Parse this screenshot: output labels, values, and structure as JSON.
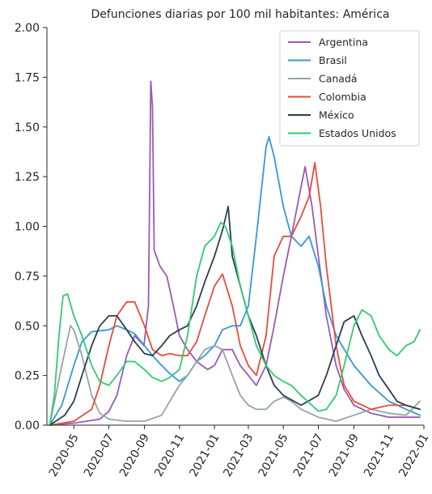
{
  "chart_data": {
    "type": "line",
    "title": "Defunciones diarias por 100 mil habitantes: América",
    "xlabel": "",
    "ylabel": "",
    "grid": false,
    "legend_position": "top-right",
    "x_domain": [
      "2020-03-15",
      "2022-01-01"
    ],
    "ylim": [
      0,
      2.0
    ],
    "y_ticks": [
      "0.00",
      "0.25",
      "0.50",
      "0.75",
      "1.00",
      "1.25",
      "1.50",
      "1.75",
      "2.00"
    ],
    "x_ticks": [
      {
        "date": "2020-05-01",
        "label": "2020-05"
      },
      {
        "date": "2020-07-01",
        "label": "2020-07"
      },
      {
        "date": "2020-09-01",
        "label": "2020-09"
      },
      {
        "date": "2020-11-01",
        "label": "2020-11"
      },
      {
        "date": "2021-01-01",
        "label": "2021-01"
      },
      {
        "date": "2021-03-01",
        "label": "2021-03"
      },
      {
        "date": "2021-05-01",
        "label": "2021-05"
      },
      {
        "date": "2021-07-01",
        "label": "2021-07"
      },
      {
        "date": "2021-09-01",
        "label": "2021-09"
      },
      {
        "date": "2021-11-01",
        "label": "2021-11"
      },
      {
        "date": "2022-01-01",
        "label": "2022-01"
      }
    ],
    "series": [
      {
        "name": "Argentina",
        "color": "#9b59b6",
        "points": [
          [
            "2020-03-20",
            0.0
          ],
          [
            "2020-05-01",
            0.01
          ],
          [
            "2020-06-15",
            0.03
          ],
          [
            "2020-07-01",
            0.07
          ],
          [
            "2020-07-15",
            0.15
          ],
          [
            "2020-08-01",
            0.35
          ],
          [
            "2020-08-15",
            0.45
          ],
          [
            "2020-08-31",
            0.4
          ],
          [
            "2020-09-08",
            0.6
          ],
          [
            "2020-09-12",
            1.73
          ],
          [
            "2020-09-15",
            1.6
          ],
          [
            "2020-09-18",
            0.88
          ],
          [
            "2020-09-28",
            0.8
          ],
          [
            "2020-10-10",
            0.75
          ],
          [
            "2020-10-20",
            0.62
          ],
          [
            "2020-11-01",
            0.45
          ],
          [
            "2020-11-15",
            0.38
          ],
          [
            "2020-12-01",
            0.32
          ],
          [
            "2020-12-20",
            0.28
          ],
          [
            "2021-01-01",
            0.3
          ],
          [
            "2021-01-15",
            0.38
          ],
          [
            "2021-02-01",
            0.38
          ],
          [
            "2021-02-15",
            0.3
          ],
          [
            "2021-03-01",
            0.25
          ],
          [
            "2021-03-15",
            0.2
          ],
          [
            "2021-04-01",
            0.3
          ],
          [
            "2021-04-15",
            0.5
          ],
          [
            "2021-05-01",
            0.75
          ],
          [
            "2021-05-15",
            0.95
          ],
          [
            "2021-06-01",
            1.2
          ],
          [
            "2021-06-08",
            1.3
          ],
          [
            "2021-06-20",
            1.1
          ],
          [
            "2021-07-01",
            0.85
          ],
          [
            "2021-07-15",
            0.55
          ],
          [
            "2021-08-01",
            0.3
          ],
          [
            "2021-08-15",
            0.18
          ],
          [
            "2021-09-01",
            0.1
          ],
          [
            "2021-10-01",
            0.06
          ],
          [
            "2021-11-01",
            0.04
          ],
          [
            "2021-12-01",
            0.04
          ],
          [
            "2021-12-25",
            0.04
          ]
        ]
      },
      {
        "name": "Brasil",
        "color": "#3498db",
        "points": [
          [
            "2020-03-20",
            0.0
          ],
          [
            "2020-04-10",
            0.1
          ],
          [
            "2020-05-01",
            0.3
          ],
          [
            "2020-05-15",
            0.42
          ],
          [
            "2020-06-01",
            0.47
          ],
          [
            "2020-07-01",
            0.48
          ],
          [
            "2020-07-15",
            0.5
          ],
          [
            "2020-08-01",
            0.48
          ],
          [
            "2020-08-15",
            0.46
          ],
          [
            "2020-09-01",
            0.4
          ],
          [
            "2020-09-15",
            0.35
          ],
          [
            "2020-10-01",
            0.3
          ],
          [
            "2020-10-15",
            0.26
          ],
          [
            "2020-11-01",
            0.22
          ],
          [
            "2020-11-15",
            0.25
          ],
          [
            "2020-12-01",
            0.32
          ],
          [
            "2020-12-15",
            0.35
          ],
          [
            "2021-01-01",
            0.4
          ],
          [
            "2021-01-15",
            0.48
          ],
          [
            "2021-02-01",
            0.5
          ],
          [
            "2021-02-15",
            0.5
          ],
          [
            "2021-03-01",
            0.6
          ],
          [
            "2021-03-15",
            0.95
          ],
          [
            "2021-04-01",
            1.4
          ],
          [
            "2021-04-06",
            1.45
          ],
          [
            "2021-04-15",
            1.35
          ],
          [
            "2021-05-01",
            1.1
          ],
          [
            "2021-05-15",
            0.95
          ],
          [
            "2021-06-01",
            0.9
          ],
          [
            "2021-06-15",
            0.95
          ],
          [
            "2021-07-01",
            0.8
          ],
          [
            "2021-07-15",
            0.6
          ],
          [
            "2021-08-01",
            0.45
          ],
          [
            "2021-09-01",
            0.3
          ],
          [
            "2021-10-01",
            0.2
          ],
          [
            "2021-11-01",
            0.12
          ],
          [
            "2021-12-01",
            0.08
          ],
          [
            "2021-12-25",
            0.05
          ]
        ]
      },
      {
        "name": "Canadá",
        "color": "#95a5a6",
        "points": [
          [
            "2020-03-20",
            0.0
          ],
          [
            "2020-04-10",
            0.3
          ],
          [
            "2020-04-25",
            0.5
          ],
          [
            "2020-05-01",
            0.48
          ],
          [
            "2020-05-15",
            0.35
          ],
          [
            "2020-06-01",
            0.15
          ],
          [
            "2020-06-15",
            0.06
          ],
          [
            "2020-07-01",
            0.03
          ],
          [
            "2020-08-01",
            0.02
          ],
          [
            "2020-09-01",
            0.02
          ],
          [
            "2020-10-01",
            0.05
          ],
          [
            "2020-10-15",
            0.12
          ],
          [
            "2020-11-01",
            0.2
          ],
          [
            "2020-11-15",
            0.25
          ],
          [
            "2020-12-01",
            0.32
          ],
          [
            "2020-12-15",
            0.38
          ],
          [
            "2021-01-01",
            0.4
          ],
          [
            "2021-01-15",
            0.38
          ],
          [
            "2021-02-01",
            0.25
          ],
          [
            "2021-02-15",
            0.15
          ],
          [
            "2021-03-01",
            0.1
          ],
          [
            "2021-03-15",
            0.08
          ],
          [
            "2021-04-01",
            0.08
          ],
          [
            "2021-04-15",
            0.12
          ],
          [
            "2021-05-01",
            0.14
          ],
          [
            "2021-05-15",
            0.12
          ],
          [
            "2021-06-01",
            0.08
          ],
          [
            "2021-07-01",
            0.04
          ],
          [
            "2021-08-01",
            0.02
          ],
          [
            "2021-09-01",
            0.05
          ],
          [
            "2021-10-01",
            0.08
          ],
          [
            "2021-11-01",
            0.06
          ],
          [
            "2021-12-01",
            0.05
          ],
          [
            "2021-12-25",
            0.12
          ]
        ]
      },
      {
        "name": "Colombia",
        "color": "#e74c3c",
        "points": [
          [
            "2020-03-20",
            0.0
          ],
          [
            "2020-05-01",
            0.02
          ],
          [
            "2020-06-01",
            0.08
          ],
          [
            "2020-06-15",
            0.2
          ],
          [
            "2020-07-01",
            0.4
          ],
          [
            "2020-07-15",
            0.55
          ],
          [
            "2020-08-01",
            0.62
          ],
          [
            "2020-08-15",
            0.62
          ],
          [
            "2020-09-01",
            0.5
          ],
          [
            "2020-09-15",
            0.38
          ],
          [
            "2020-10-01",
            0.35
          ],
          [
            "2020-10-15",
            0.36
          ],
          [
            "2020-11-01",
            0.35
          ],
          [
            "2020-11-15",
            0.35
          ],
          [
            "2020-12-01",
            0.42
          ],
          [
            "2020-12-15",
            0.55
          ],
          [
            "2021-01-01",
            0.7
          ],
          [
            "2021-01-15",
            0.76
          ],
          [
            "2021-02-01",
            0.6
          ],
          [
            "2021-02-15",
            0.4
          ],
          [
            "2021-03-01",
            0.3
          ],
          [
            "2021-03-15",
            0.25
          ],
          [
            "2021-04-01",
            0.45
          ],
          [
            "2021-04-15",
            0.85
          ],
          [
            "2021-05-01",
            0.95
          ],
          [
            "2021-05-15",
            0.95
          ],
          [
            "2021-06-01",
            1.05
          ],
          [
            "2021-06-15",
            1.15
          ],
          [
            "2021-06-25",
            1.32
          ],
          [
            "2021-07-05",
            1.1
          ],
          [
            "2021-07-15",
            0.8
          ],
          [
            "2021-08-01",
            0.4
          ],
          [
            "2021-08-15",
            0.2
          ],
          [
            "2021-09-01",
            0.12
          ],
          [
            "2021-10-01",
            0.08
          ],
          [
            "2021-11-01",
            0.1
          ],
          [
            "2021-12-01",
            0.1
          ],
          [
            "2021-12-25",
            0.08
          ]
        ]
      },
      {
        "name": "México",
        "color": "#2c3e50",
        "points": [
          [
            "2020-03-20",
            0.0
          ],
          [
            "2020-04-15",
            0.05
          ],
          [
            "2020-05-01",
            0.12
          ],
          [
            "2020-05-15",
            0.25
          ],
          [
            "2020-06-01",
            0.4
          ],
          [
            "2020-06-15",
            0.5
          ],
          [
            "2020-07-01",
            0.55
          ],
          [
            "2020-07-15",
            0.55
          ],
          [
            "2020-08-01",
            0.48
          ],
          [
            "2020-08-15",
            0.42
          ],
          [
            "2020-09-01",
            0.36
          ],
          [
            "2020-09-15",
            0.35
          ],
          [
            "2020-10-01",
            0.4
          ],
          [
            "2020-10-15",
            0.45
          ],
          [
            "2020-11-01",
            0.48
          ],
          [
            "2020-11-15",
            0.5
          ],
          [
            "2020-12-01",
            0.6
          ],
          [
            "2020-12-15",
            0.72
          ],
          [
            "2021-01-01",
            0.85
          ],
          [
            "2021-01-15",
            0.98
          ],
          [
            "2021-01-25",
            1.1
          ],
          [
            "2021-02-01",
            0.85
          ],
          [
            "2021-02-15",
            0.7
          ],
          [
            "2021-03-01",
            0.55
          ],
          [
            "2021-03-15",
            0.45
          ],
          [
            "2021-04-01",
            0.3
          ],
          [
            "2021-04-15",
            0.2
          ],
          [
            "2021-05-01",
            0.15
          ],
          [
            "2021-06-01",
            0.1
          ],
          [
            "2021-07-01",
            0.15
          ],
          [
            "2021-07-15",
            0.25
          ],
          [
            "2021-08-01",
            0.4
          ],
          [
            "2021-08-15",
            0.52
          ],
          [
            "2021-09-01",
            0.55
          ],
          [
            "2021-09-15",
            0.45
          ],
          [
            "2021-10-01",
            0.35
          ],
          [
            "2021-10-15",
            0.25
          ],
          [
            "2021-11-01",
            0.18
          ],
          [
            "2021-11-15",
            0.12
          ],
          [
            "2021-12-01",
            0.1
          ],
          [
            "2021-12-25",
            0.08
          ]
        ]
      },
      {
        "name": "Estados Unidos",
        "color": "#2ecc71",
        "points": [
          [
            "2020-03-20",
            0.0
          ],
          [
            "2020-03-28",
            0.15
          ],
          [
            "2020-04-05",
            0.45
          ],
          [
            "2020-04-12",
            0.65
          ],
          [
            "2020-04-20",
            0.66
          ],
          [
            "2020-05-01",
            0.55
          ],
          [
            "2020-05-15",
            0.45
          ],
          [
            "2020-06-01",
            0.3
          ],
          [
            "2020-06-15",
            0.22
          ],
          [
            "2020-07-01",
            0.2
          ],
          [
            "2020-07-15",
            0.25
          ],
          [
            "2020-08-01",
            0.32
          ],
          [
            "2020-08-15",
            0.32
          ],
          [
            "2020-09-01",
            0.28
          ],
          [
            "2020-09-15",
            0.24
          ],
          [
            "2020-10-01",
            0.22
          ],
          [
            "2020-10-15",
            0.24
          ],
          [
            "2020-11-01",
            0.28
          ],
          [
            "2020-11-15",
            0.45
          ],
          [
            "2020-12-01",
            0.75
          ],
          [
            "2020-12-15",
            0.9
          ],
          [
            "2021-01-01",
            0.95
          ],
          [
            "2021-01-12",
            1.02
          ],
          [
            "2021-01-20",
            1.0
          ],
          [
            "2021-02-01",
            0.9
          ],
          [
            "2021-02-15",
            0.7
          ],
          [
            "2021-03-01",
            0.55
          ],
          [
            "2021-03-15",
            0.4
          ],
          [
            "2021-04-01",
            0.3
          ],
          [
            "2021-04-15",
            0.25
          ],
          [
            "2021-05-01",
            0.22
          ],
          [
            "2021-05-15",
            0.2
          ],
          [
            "2021-06-01",
            0.15
          ],
          [
            "2021-07-01",
            0.07
          ],
          [
            "2021-07-15",
            0.08
          ],
          [
            "2021-08-01",
            0.15
          ],
          [
            "2021-08-15",
            0.3
          ],
          [
            "2021-09-01",
            0.5
          ],
          [
            "2021-09-15",
            0.58
          ],
          [
            "2021-10-01",
            0.55
          ],
          [
            "2021-10-15",
            0.45
          ],
          [
            "2021-11-01",
            0.38
          ],
          [
            "2021-11-15",
            0.35
          ],
          [
            "2021-12-01",
            0.4
          ],
          [
            "2021-12-15",
            0.42
          ],
          [
            "2021-12-25",
            0.48
          ]
        ]
      }
    ]
  }
}
